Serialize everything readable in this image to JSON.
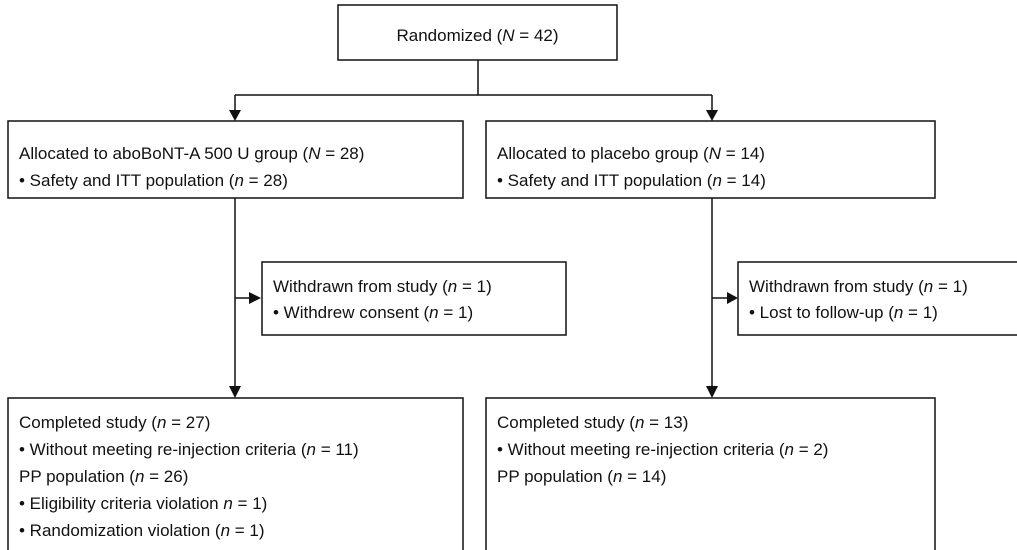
{
  "nodes": [
    {
      "lines": [
        [
          {
            "text": "Randomized ("
          },
          {
            "text": "N",
            "italic": true
          },
          {
            "text": " = 42)"
          }
        ]
      ]
    },
    {
      "lines": [
        [
          {
            "text": "Allocated to aboBoNT-A 500 U group ("
          },
          {
            "text": "N",
            "italic": true
          },
          {
            "text": " = 28)"
          }
        ],
        [
          {
            "text": "• Safety and ITT population ("
          },
          {
            "text": "n",
            "italic": true
          },
          {
            "text": " = 28)"
          }
        ]
      ]
    },
    {
      "lines": [
        [
          {
            "text": "Allocated to placebo group ("
          },
          {
            "text": "N",
            "italic": true
          },
          {
            "text": " = 14)"
          }
        ],
        [
          {
            "text": "• Safety and ITT population ("
          },
          {
            "text": "n",
            "italic": true
          },
          {
            "text": " = 14)"
          }
        ]
      ]
    },
    {
      "lines": [
        [
          {
            "text": "Withdrawn from study ("
          },
          {
            "text": "n",
            "italic": true
          },
          {
            "text": " = 1)"
          }
        ],
        [
          {
            "text": "• Withdrew consent ("
          },
          {
            "text": "n",
            "italic": true
          },
          {
            "text": " = 1)"
          }
        ]
      ]
    },
    {
      "lines": [
        [
          {
            "text": "Withdrawn from study ("
          },
          {
            "text": "n",
            "italic": true
          },
          {
            "text": " = 1)"
          }
        ],
        [
          {
            "text": "• Lost to follow-up ("
          },
          {
            "text": "n",
            "italic": true
          },
          {
            "text": " = 1)"
          }
        ]
      ]
    },
    {
      "lines": [
        [
          {
            "text": "Completed study ("
          },
          {
            "text": "n",
            "italic": true
          },
          {
            "text": " = 27)"
          }
        ],
        [
          {
            "text": "• Without meeting re-injection criteria ("
          },
          {
            "text": "n",
            "italic": true
          },
          {
            "text": " = 11)"
          }
        ],
        [
          {
            "text": "PP population ("
          },
          {
            "text": "n",
            "italic": true
          },
          {
            "text": " = 26)"
          }
        ],
        [
          {
            "text": "• Eligibility criteria violation "
          },
          {
            "text": "n",
            "italic": true
          },
          {
            "text": " = 1)"
          }
        ],
        [
          {
            "text": "• Randomization violation ("
          },
          {
            "text": "n",
            "italic": true
          },
          {
            "text": " = 1)"
          }
        ]
      ]
    },
    {
      "lines": [
        [
          {
            "text": "Completed study ("
          },
          {
            "text": "n",
            "italic": true
          },
          {
            "text": " = 13)"
          }
        ],
        [
          {
            "text": "• Without meeting re-injection criteria ("
          },
          {
            "text": "n",
            "italic": true
          },
          {
            "text": " = 2)"
          }
        ],
        [
          {
            "text": "PP population ("
          },
          {
            "text": "n",
            "italic": true
          },
          {
            "text": " = 14)"
          }
        ]
      ]
    }
  ]
}
